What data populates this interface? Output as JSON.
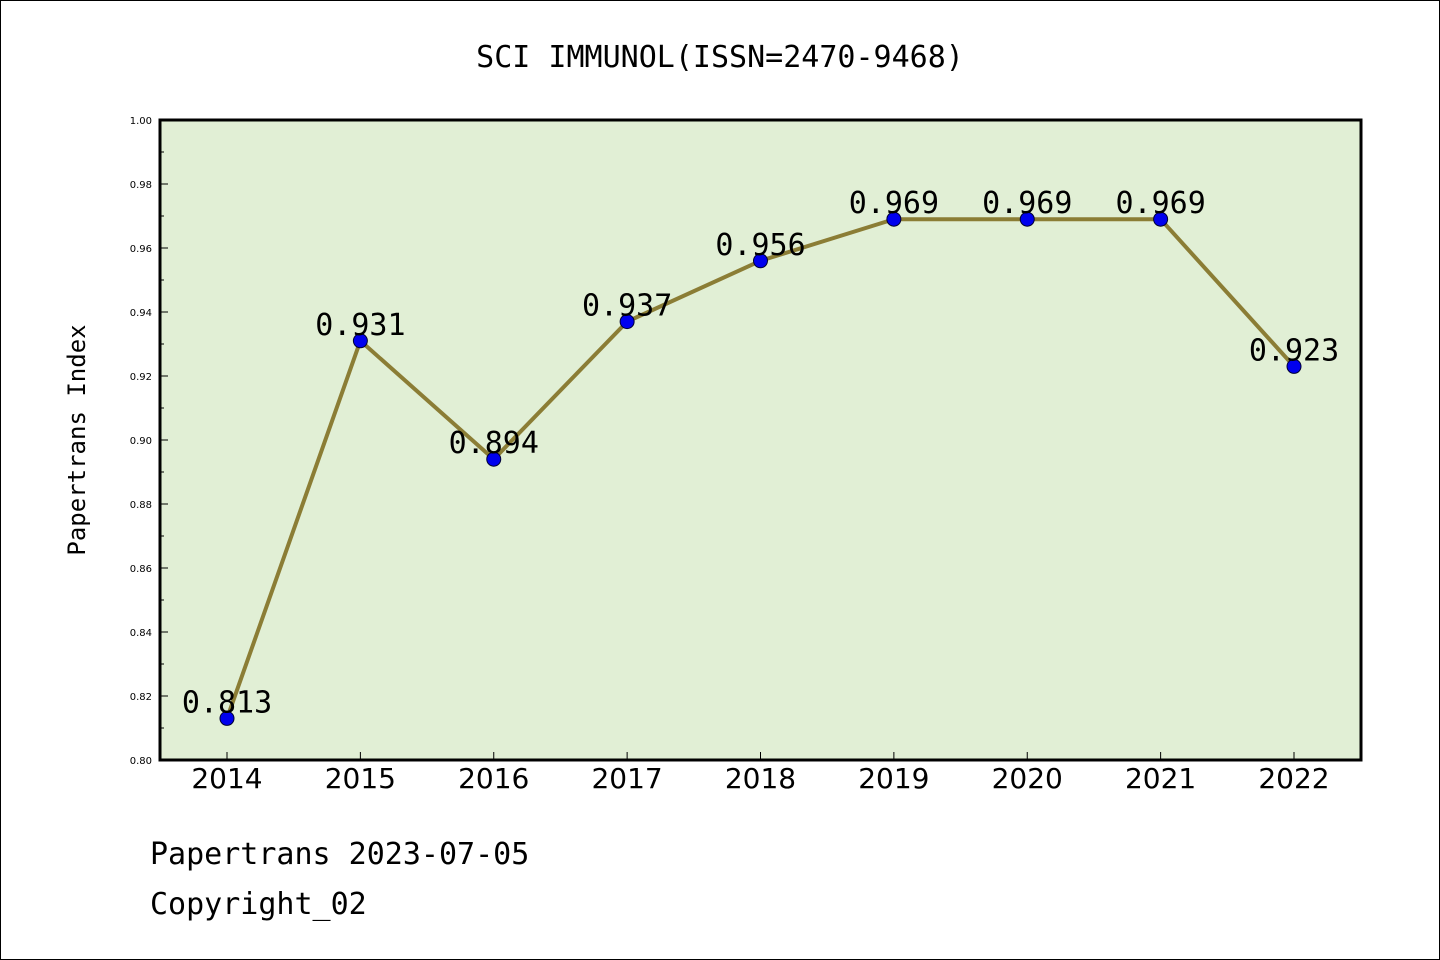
{
  "chart_data": {
    "type": "line",
    "title": "SCI IMMUNOL(ISSN=2470-9468)",
    "xlabel": "",
    "ylabel": "Papertrans Index",
    "categories": [
      "2014",
      "2015",
      "2016",
      "2017",
      "2018",
      "2019",
      "2020",
      "2021",
      "2022"
    ],
    "values": [
      0.813,
      0.931,
      0.894,
      0.937,
      0.956,
      0.969,
      0.969,
      0.969,
      0.923
    ],
    "data_labels": [
      "0.813",
      "0.931",
      "0.894",
      "0.937",
      "0.956",
      "0.969",
      "0.969",
      "0.969",
      "0.923"
    ],
    "yticks": [
      "0.80",
      "0.82",
      "0.84",
      "0.86",
      "0.88",
      "0.90",
      "0.92",
      "0.94",
      "0.96",
      "0.98",
      "1.00"
    ],
    "ylim": [
      0.8,
      1.0
    ],
    "grid": false,
    "legend": "none"
  },
  "footer": {
    "line1": "Papertrans 2023-07-05",
    "line2": "Copyright_02"
  },
  "colors": {
    "plot_background": "#e1efd5",
    "line": "#8b7d35",
    "marker": "#0000ee",
    "axes": "#000000"
  }
}
